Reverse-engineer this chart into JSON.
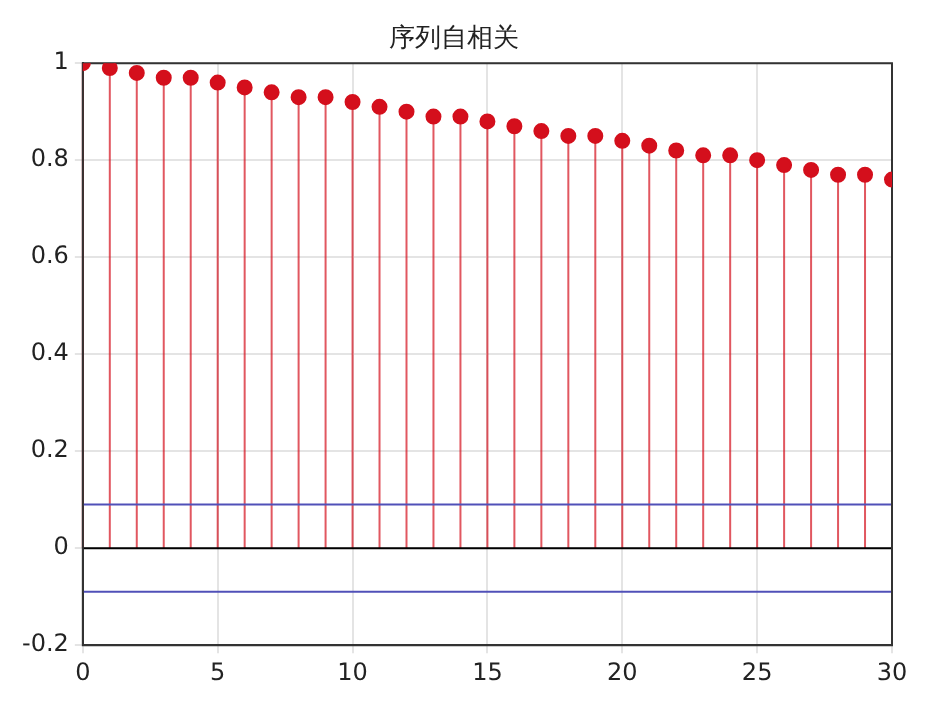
{
  "chart_data": {
    "type": "lollipop",
    "title": "序列自相关",
    "x": [
      0,
      1,
      2,
      3,
      4,
      5,
      6,
      7,
      8,
      9,
      10,
      11,
      12,
      13,
      14,
      15,
      16,
      17,
      18,
      19,
      20,
      21,
      22,
      23,
      24,
      25,
      26,
      27,
      28,
      29,
      30
    ],
    "series": [
      {
        "color": "#d40f1c",
        "values": [
          1,
          0.99,
          0.98,
          0.97,
          0.97,
          0.96,
          0.95,
          0.94,
          0.93,
          0.93,
          0.92,
          0.91,
          0.9,
          0.89,
          0.89,
          0.88,
          0.87,
          0.86,
          0.85,
          0.85,
          0.84,
          0.83,
          0.82,
          0.81,
          0.81,
          0.8,
          0.79,
          0.78,
          0.77,
          0.77,
          0.76
        ]
      }
    ],
    "ref_lines": [
      {
        "axis": "y",
        "value": 0,
        "color": "#000000"
      },
      {
        "axis": "y",
        "value": 0.09,
        "color": "#5050b8"
      },
      {
        "axis": "y",
        "value": -0.09,
        "color": "#5050b8"
      }
    ],
    "xlim": [
      0,
      30
    ],
    "xticks": [
      0,
      5,
      10,
      15,
      20,
      25,
      30
    ],
    "ylim": [
      -0.2,
      1
    ],
    "yticks": [
      -0.2,
      0,
      0.2,
      0.4,
      0.6,
      0.8,
      1
    ],
    "grid": true,
    "marker": "circle",
    "legend": false
  }
}
